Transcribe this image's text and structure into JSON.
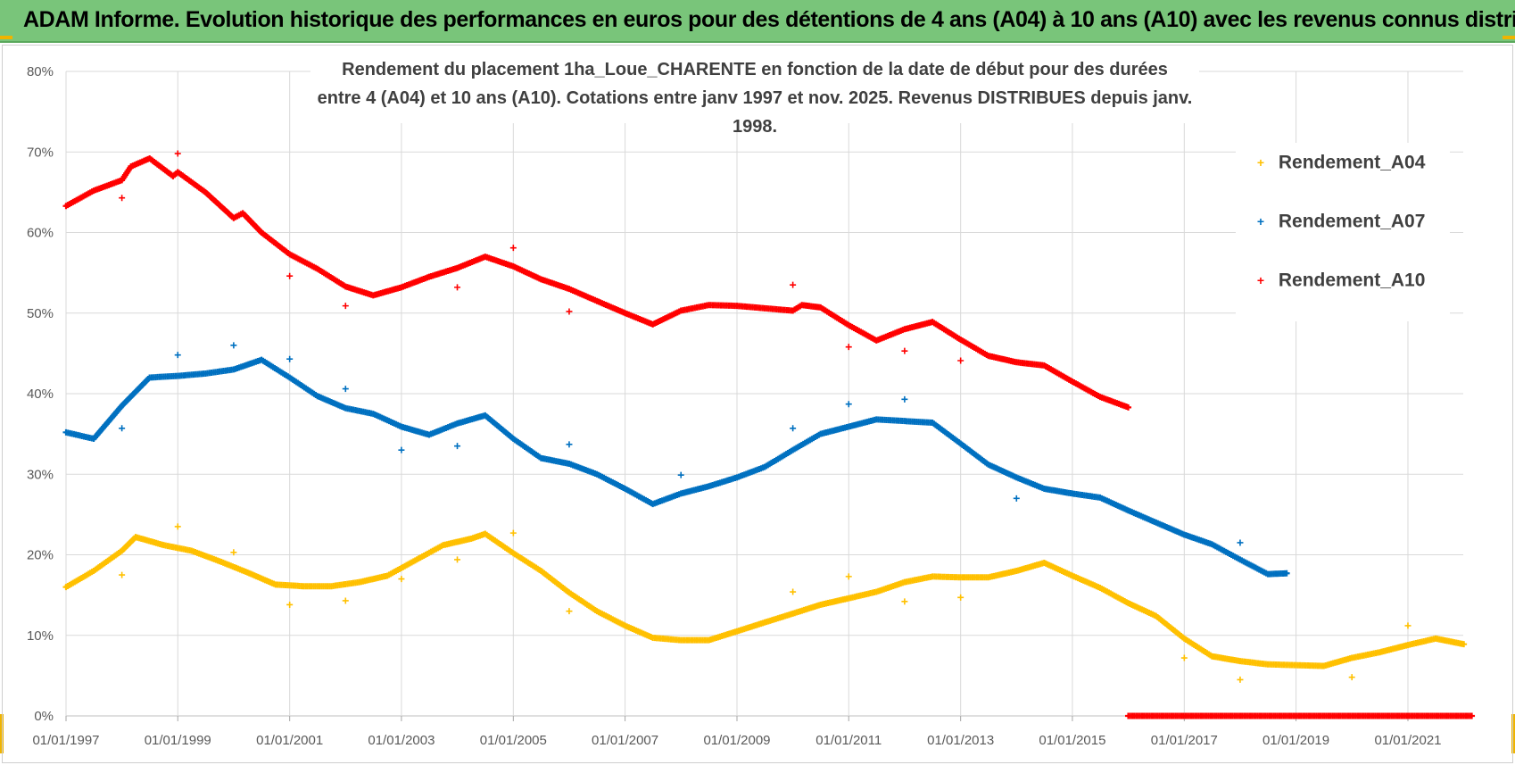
{
  "header": {
    "title": "ADAM Informe. Evolution historique des performances en euros pour des détentions de 4 ans (A04) à 10 ans (A10) avec les revenus connus distribués"
  },
  "colors": {
    "header_bg": "#79c57a",
    "accent_corner": "#f0b400",
    "A04": "#ffc000",
    "A07": "#0070c0",
    "A10": "#ff0000",
    "grid": "#d9d9d9"
  },
  "chart_data": {
    "type": "scatter",
    "title_line1": "Rendement du placement 1ha_Loue_CHARENTE en fonction de la date de début pour des durées",
    "title_line2": "entre 4 (A04) et 10 ans (A10).  Cotations entre janv 1997 et nov. 2025. Revenus DISTRIBUES depuis janv. 1998.",
    "x_axis": {
      "type": "date",
      "min": "1997-01-01",
      "max": "2022-03-01",
      "tick_labels": [
        "01/01/1997",
        "01/01/1999",
        "01/01/2001",
        "01/01/2003",
        "01/01/2005",
        "01/01/2007",
        "01/01/2009",
        "01/01/2011",
        "01/01/2013",
        "01/01/2015",
        "01/01/2017",
        "01/01/2019",
        "01/01/2021"
      ]
    },
    "y_axis": {
      "min": 0,
      "max": 80,
      "unit": "%",
      "tick_labels": [
        "0%",
        "10%",
        "20%",
        "30%",
        "40%",
        "50%",
        "60%",
        "70%",
        "80%"
      ]
    },
    "grid": true,
    "legend_position": "top-right",
    "series": [
      {
        "name": "Rendement_A04",
        "color": "#ffc000",
        "points": [
          [
            "1997-01-01",
            16
          ],
          [
            "1997-07-01",
            18
          ],
          [
            "1998-01-01",
            20.5
          ],
          [
            "1998-04-01",
            22.2
          ],
          [
            "1998-10-01",
            21.2
          ],
          [
            "1999-04-01",
            20.5
          ],
          [
            "1999-10-01",
            19.2
          ],
          [
            "2000-04-01",
            17.8
          ],
          [
            "2000-10-01",
            16.3
          ],
          [
            "2001-04-01",
            16.1
          ],
          [
            "2001-10-01",
            16.1
          ],
          [
            "2002-04-01",
            16.6
          ],
          [
            "2002-10-01",
            17.4
          ],
          [
            "2003-04-01",
            19.3
          ],
          [
            "2003-10-01",
            21.2
          ],
          [
            "2004-04-01",
            22.0
          ],
          [
            "2004-07-01",
            22.6
          ],
          [
            "2005-01-01",
            20.2
          ],
          [
            "2005-07-01",
            18.0
          ],
          [
            "2006-01-01",
            15.3
          ],
          [
            "2006-07-01",
            13.0
          ],
          [
            "2007-01-01",
            11.2
          ],
          [
            "2007-07-01",
            9.7
          ],
          [
            "2008-01-01",
            9.4
          ],
          [
            "2008-07-01",
            9.4
          ],
          [
            "2009-01-01",
            10.5
          ],
          [
            "2009-07-01",
            11.6
          ],
          [
            "2010-01-01",
            12.7
          ],
          [
            "2010-07-01",
            13.8
          ],
          [
            "2011-01-01",
            14.6
          ],
          [
            "2011-07-01",
            15.4
          ],
          [
            "2012-01-01",
            16.6
          ],
          [
            "2012-07-01",
            17.3
          ],
          [
            "2013-01-01",
            17.2
          ],
          [
            "2013-07-01",
            17.2
          ],
          [
            "2014-01-01",
            18.0
          ],
          [
            "2014-07-01",
            19.0
          ],
          [
            "2015-01-01",
            17.4
          ],
          [
            "2015-07-01",
            15.9
          ],
          [
            "2016-01-01",
            14.0
          ],
          [
            "2016-07-01",
            12.4
          ],
          [
            "2017-01-01",
            9.6
          ],
          [
            "2017-07-01",
            7.4
          ],
          [
            "2018-01-01",
            6.8
          ],
          [
            "2018-07-01",
            6.4
          ],
          [
            "2019-01-01",
            6.3
          ],
          [
            "2019-07-01",
            6.2
          ],
          [
            "2020-01-01",
            7.2
          ],
          [
            "2020-07-01",
            7.9
          ],
          [
            "2021-01-01",
            8.8
          ],
          [
            "2021-07-01",
            9.6
          ],
          [
            "2022-01-01",
            8.9
          ]
        ],
        "outliers": [
          [
            "1998-01-01",
            17.5
          ],
          [
            "1999-01-01",
            23.5
          ],
          [
            "2000-01-01",
            20.3
          ],
          [
            "2001-01-01",
            13.8
          ],
          [
            "2002-01-01",
            14.3
          ],
          [
            "2003-01-01",
            17.0
          ],
          [
            "2004-01-01",
            19.4
          ],
          [
            "2005-01-01",
            22.7
          ],
          [
            "2006-01-01",
            13.0
          ],
          [
            "2010-01-01",
            15.4
          ],
          [
            "2011-01-01",
            17.3
          ],
          [
            "2012-01-01",
            14.2
          ],
          [
            "2013-01-01",
            14.7
          ],
          [
            "2017-01-01",
            7.2
          ],
          [
            "2018-01-01",
            4.5
          ],
          [
            "2020-01-01",
            4.8
          ],
          [
            "2021-01-01",
            11.2
          ]
        ]
      },
      {
        "name": "Rendement_A07",
        "color": "#0070c0",
        "points": [
          [
            "1997-01-01",
            35.2
          ],
          [
            "1997-07-01",
            34.4
          ],
          [
            "1998-01-01",
            38.5
          ],
          [
            "1998-07-01",
            42.0
          ],
          [
            "1999-01-01",
            42.2
          ],
          [
            "1999-07-01",
            42.5
          ],
          [
            "2000-01-01",
            43.0
          ],
          [
            "2000-07-01",
            44.2
          ],
          [
            "2001-01-01",
            42.0
          ],
          [
            "2001-07-01",
            39.7
          ],
          [
            "2002-01-01",
            38.2
          ],
          [
            "2002-07-01",
            37.5
          ],
          [
            "2003-01-01",
            35.9
          ],
          [
            "2003-07-01",
            34.9
          ],
          [
            "2004-01-01",
            36.3
          ],
          [
            "2004-07-01",
            37.3
          ],
          [
            "2005-01-01",
            34.4
          ],
          [
            "2005-07-01",
            32.0
          ],
          [
            "2006-01-01",
            31.3
          ],
          [
            "2006-07-01",
            30.0
          ],
          [
            "2007-01-01",
            28.2
          ],
          [
            "2007-07-01",
            26.3
          ],
          [
            "2008-01-01",
            27.6
          ],
          [
            "2008-07-01",
            28.5
          ],
          [
            "2009-01-01",
            29.6
          ],
          [
            "2009-07-01",
            30.9
          ],
          [
            "2010-01-01",
            33.0
          ],
          [
            "2010-07-01",
            35.0
          ],
          [
            "2011-01-01",
            35.9
          ],
          [
            "2011-07-01",
            36.8
          ],
          [
            "2012-01-01",
            36.6
          ],
          [
            "2012-07-01",
            36.4
          ],
          [
            "2013-01-01",
            33.8
          ],
          [
            "2013-07-01",
            31.2
          ],
          [
            "2014-01-01",
            29.6
          ],
          [
            "2014-07-01",
            28.2
          ],
          [
            "2015-01-01",
            27.6
          ],
          [
            "2015-07-01",
            27.1
          ],
          [
            "2016-01-01",
            25.5
          ],
          [
            "2016-07-01",
            24.0
          ],
          [
            "2017-01-01",
            22.5
          ],
          [
            "2017-07-01",
            21.3
          ],
          [
            "2018-01-01",
            19.4
          ],
          [
            "2018-07-01",
            17.6
          ],
          [
            "2018-11-01",
            17.7
          ]
        ],
        "outliers": [
          [
            "1998-01-01",
            35.7
          ],
          [
            "1999-01-01",
            44.8
          ],
          [
            "2000-01-01",
            46.0
          ],
          [
            "2001-01-01",
            44.3
          ],
          [
            "2002-01-01",
            40.6
          ],
          [
            "2003-01-01",
            33.0
          ],
          [
            "2004-01-01",
            33.5
          ],
          [
            "2006-01-01",
            33.7
          ],
          [
            "2008-01-01",
            29.9
          ],
          [
            "2010-01-01",
            35.7
          ],
          [
            "2011-01-01",
            38.7
          ],
          [
            "2012-01-01",
            39.3
          ],
          [
            "2014-01-01",
            27.0
          ],
          [
            "2018-01-01",
            21.5
          ]
        ]
      },
      {
        "name": "Rendement_A10",
        "color": "#ff0000",
        "points": [
          [
            "1997-01-01",
            63.3
          ],
          [
            "1997-07-01",
            65.2
          ],
          [
            "1998-01-01",
            66.5
          ],
          [
            "1998-03-01",
            68.2
          ],
          [
            "1998-07-01",
            69.2
          ],
          [
            "1998-12-01",
            67.0
          ],
          [
            "1999-01-01",
            67.5
          ],
          [
            "1999-07-01",
            65.0
          ],
          [
            "2000-01-01",
            61.8
          ],
          [
            "2000-03-01",
            62.4
          ],
          [
            "2000-07-01",
            60.0
          ],
          [
            "2001-01-01",
            57.3
          ],
          [
            "2001-07-01",
            55.5
          ],
          [
            "2002-01-01",
            53.3
          ],
          [
            "2002-07-01",
            52.2
          ],
          [
            "2003-01-01",
            53.2
          ],
          [
            "2003-07-01",
            54.5
          ],
          [
            "2004-01-01",
            55.6
          ],
          [
            "2004-07-01",
            57.0
          ],
          [
            "2005-01-01",
            55.8
          ],
          [
            "2005-07-01",
            54.2
          ],
          [
            "2006-01-01",
            53.0
          ],
          [
            "2006-07-01",
            51.5
          ],
          [
            "2007-01-01",
            50.0
          ],
          [
            "2007-07-01",
            48.6
          ],
          [
            "2008-01-01",
            50.3
          ],
          [
            "2008-07-01",
            51.0
          ],
          [
            "2009-01-01",
            50.9
          ],
          [
            "2009-07-01",
            50.6
          ],
          [
            "2010-01-01",
            50.3
          ],
          [
            "2010-03-01",
            51.0
          ],
          [
            "2010-07-01",
            50.7
          ],
          [
            "2011-01-01",
            48.5
          ],
          [
            "2011-07-01",
            46.6
          ],
          [
            "2012-01-01",
            48.0
          ],
          [
            "2012-07-01",
            48.9
          ],
          [
            "2013-01-01",
            46.7
          ],
          [
            "2013-07-01",
            44.7
          ],
          [
            "2014-01-01",
            43.9
          ],
          [
            "2014-07-01",
            43.5
          ],
          [
            "2015-01-01",
            41.5
          ],
          [
            "2015-07-01",
            39.6
          ],
          [
            "2016-01-01",
            38.3
          ]
        ],
        "outliers": [
          [
            "1998-01-01",
            64.3
          ],
          [
            "1999-01-01",
            69.8
          ],
          [
            "2001-01-01",
            54.6
          ],
          [
            "2002-01-01",
            50.9
          ],
          [
            "2004-01-01",
            53.2
          ],
          [
            "2005-01-01",
            58.1
          ],
          [
            "2006-01-01",
            50.2
          ],
          [
            "2010-01-01",
            53.5
          ],
          [
            "2011-01-01",
            45.8
          ],
          [
            "2012-01-01",
            45.3
          ],
          [
            "2013-01-01",
            44.1
          ]
        ],
        "zero_segment": {
          "from": "2016-01-01",
          "to": "2022-03-01",
          "value": 0
        }
      }
    ]
  }
}
